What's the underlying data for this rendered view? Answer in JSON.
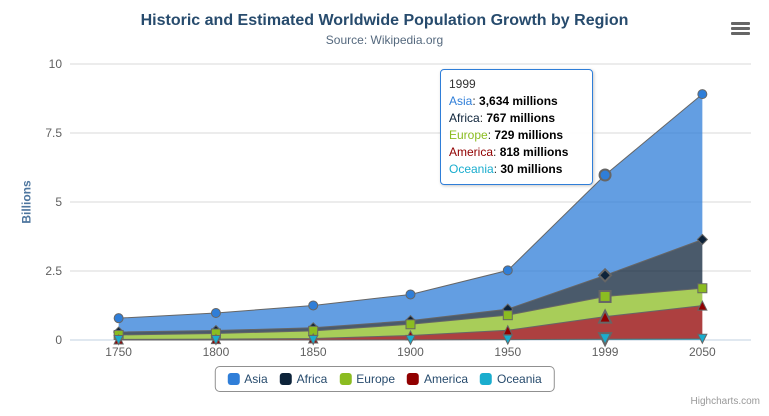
{
  "chart_data": {
    "type": "area",
    "stacking": "normal",
    "title": "Historic and Estimated Worldwide Population Growth by Region",
    "subtitle": "Source: Wikipedia.org",
    "categories": [
      "1750",
      "1800",
      "1850",
      "1900",
      "1950",
      "1999",
      "2050"
    ],
    "series": [
      {
        "name": "Asia",
        "color": "#2f7ed8",
        "marker": "circle",
        "values": [
          502,
          635,
          809,
          947,
          1402,
          3634,
          5268
        ]
      },
      {
        "name": "Africa",
        "color": "#0d233a",
        "marker": "diamond",
        "values": [
          106,
          107,
          111,
          133,
          221,
          767,
          1766
        ]
      },
      {
        "name": "Europe",
        "color": "#8bbc21",
        "marker": "square",
        "values": [
          163,
          203,
          276,
          408,
          547,
          729,
          628
        ]
      },
      {
        "name": "America",
        "color": "#910000",
        "marker": "triangle",
        "values": [
          18,
          31,
          54,
          156,
          339,
          818,
          1201
        ]
      },
      {
        "name": "Oceania",
        "color": "#1aadce",
        "marker": "triangle-down",
        "values": [
          2,
          2,
          2,
          6,
          13,
          30,
          46
        ]
      }
    ],
    "unit": "millions",
    "xlabel": "",
    "ylabel": "Billions",
    "yticks": [
      0,
      2.5,
      5,
      7.5,
      10
    ],
    "ylim": [
      0,
      10
    ],
    "grid": true,
    "legend_position": "bottom-center"
  },
  "tooltip": {
    "header": "1999",
    "hover_category_index": 5,
    "unit": "millions",
    "values": [
      "3,634",
      "767",
      "729",
      "818",
      "30"
    ]
  },
  "credits": {
    "label": "Highcharts.com"
  },
  "style": {
    "title_color": "#274b6d",
    "subtitle_color": "#55697e",
    "axis_label_color": "#606060",
    "y_axis_title_color": "#4d759e",
    "legend_text_color": "#274b6d",
    "grid_color": "#d8d8d8",
    "axis_line_color": "#c0d0e0",
    "series_line_color": "#666666",
    "tooltip_border_color": "#2f7ed8",
    "credits_color": "#999999",
    "menu_icon_color": "#666666"
  }
}
